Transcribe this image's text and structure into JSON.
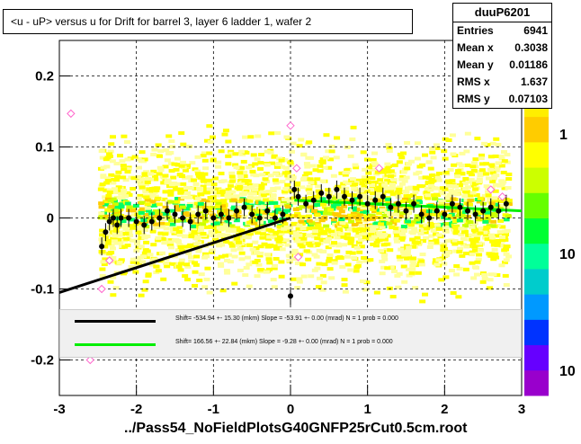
{
  "title": "<u - uP>     versus   u for Drift for barrel 3, layer 6 ladder 1, wafer 2",
  "stats": {
    "name": "duuP6201",
    "rows": [
      {
        "label": "Entries",
        "value": "6941"
      },
      {
        "label": "Mean x",
        "value": "0.3038"
      },
      {
        "label": "Mean y",
        "value": "0.01186"
      },
      {
        "label": "RMS x",
        "value": "1.637"
      },
      {
        "label": "RMS y",
        "value": "0.07103"
      }
    ]
  },
  "footer": "../Pass54_NoFieldPlotsG40GNFP25rCut0.5cm.root",
  "fits": [
    {
      "text": "Shift=   -534.94 +- 15.30 (mkm) Slope =   -53.91 +- 0.00 (mrad)  N = 1 prob = 0.000",
      "color": "#000000"
    },
    {
      "text": "Shift=   166.56 +- 22.84 (mkm) Slope =   -9.28 +- 0.00 (mrad)  N = 1 prob = 0.000",
      "color": "#00ee00"
    }
  ],
  "colors": {
    "black_fit": "#000000",
    "green_fit": "#00ee00",
    "points": "#000000",
    "open_points": "#ff66cc"
  },
  "chart_data": {
    "type": "scatter",
    "title": "<u - uP>     versus   u for Drift for barrel 3, layer 6 ladder 1, wafer 2",
    "xlabel": "",
    "ylabel": "",
    "xlim": [
      -3,
      3
    ],
    "ylim": [
      -0.25,
      0.25
    ],
    "x_ticks": [
      "-3",
      "-2",
      "-1",
      "0",
      "1",
      "2",
      "3"
    ],
    "y_ticks": [
      "-0.2",
      "-0.1",
      "0",
      "0.1",
      "0.2"
    ],
    "z_ticks": [
      "1",
      "10",
      "10"
    ],
    "grid": true,
    "heatmap": {
      "description_colors": [
        "#ffff99",
        "#ffff00",
        "#ffcc00",
        "#ccff00",
        "#00ff66",
        "#00cccc",
        "#0099ff",
        "#6600ff",
        "#9900cc"
      ]
    },
    "series": [
      {
        "name": "profile",
        "marker": "filled-circle",
        "x": [
          -2.45,
          -2.4,
          -2.35,
          -2.3,
          -2.25,
          -2.2,
          -2.1,
          -2.0,
          -1.9,
          -1.8,
          -1.7,
          -1.6,
          -1.5,
          -1.4,
          -1.3,
          -1.2,
          -1.1,
          -1.0,
          -0.9,
          -0.8,
          -0.7,
          -0.6,
          -0.5,
          -0.4,
          -0.3,
          -0.2,
          -0.1,
          0.0,
          0.05,
          0.1,
          0.2,
          0.3,
          0.4,
          0.5,
          0.6,
          0.7,
          0.8,
          0.9,
          1.0,
          1.1,
          1.2,
          1.3,
          1.4,
          1.5,
          1.6,
          1.7,
          1.8,
          1.9,
          2.0,
          2.1,
          2.2,
          2.3,
          2.4,
          2.5,
          2.6,
          2.7,
          2.8
        ],
        "y": [
          -0.04,
          -0.02,
          -0.005,
          0.0,
          -0.01,
          0.0,
          0.0,
          -0.005,
          -0.01,
          -0.005,
          0.0,
          0.01,
          0.005,
          0.0,
          -0.005,
          0.005,
          0.01,
          0.0,
          0.005,
          0.0,
          0.01,
          0.015,
          0.005,
          0.0,
          0.01,
          0.0,
          0.005,
          -0.11,
          0.04,
          0.03,
          0.02,
          0.025,
          0.035,
          0.03,
          0.04,
          0.03,
          0.025,
          0.03,
          0.02,
          0.025,
          0.03,
          0.015,
          0.02,
          0.01,
          0.02,
          0.005,
          0.0,
          0.01,
          0.005,
          0.02,
          0.015,
          0.01,
          0.005,
          0.01,
          0.015,
          0.01,
          0.02
        ]
      },
      {
        "name": "outliers",
        "marker": "open-diamond",
        "x": [
          -2.85,
          -2.45,
          -2.35,
          -2.6,
          0.0,
          0.1,
          0.08,
          1.15,
          2.6,
          2.75
        ],
        "y": [
          0.147,
          -0.1,
          -0.06,
          -0.2,
          0.13,
          -0.055,
          0.07,
          0.07,
          0.04,
          0.03
        ]
      }
    ],
    "fit_lines": [
      {
        "name": "black",
        "x": [
          -3,
          0
        ],
        "y": [
          -0.105,
          0.0
        ]
      },
      {
        "name": "green",
        "x": [
          0.05,
          3
        ],
        "y": [
          0.025,
          0.01
        ]
      }
    ]
  }
}
